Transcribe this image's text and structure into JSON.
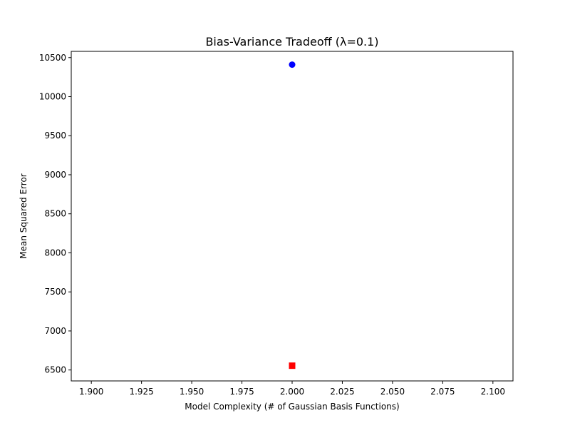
{
  "chart_data": {
    "type": "scatter",
    "title": "Bias-Variance Tradeoff (λ=0.1)",
    "xlabel": "Model Complexity (# of Gaussian Basis Functions)",
    "ylabel": "Mean Squared Error",
    "xlim": [
      1.89,
      2.11
    ],
    "ylim": [
      6360,
      10580
    ],
    "xticks": [
      1.9,
      1.925,
      1.95,
      1.975,
      2.0,
      2.025,
      2.05,
      2.075,
      2.1
    ],
    "xtick_labels": [
      "1.900",
      "1.925",
      "1.950",
      "1.975",
      "2.000",
      "2.025",
      "2.050",
      "2.075",
      "2.100"
    ],
    "yticks": [
      6500,
      7000,
      7500,
      8000,
      8500,
      9000,
      9500,
      10000,
      10500
    ],
    "ytick_labels": [
      "6500",
      "7000",
      "7500",
      "8000",
      "8500",
      "9000",
      "9500",
      "10000",
      "10500"
    ],
    "grid": false,
    "legend": "none",
    "series": [
      {
        "marker": "circle",
        "color": "#0000ff",
        "points": [
          {
            "x": 2.0,
            "y": 10410
          }
        ]
      },
      {
        "marker": "square",
        "color": "#ff0000",
        "points": [
          {
            "x": 2.0,
            "y": 6555
          }
        ]
      }
    ]
  }
}
